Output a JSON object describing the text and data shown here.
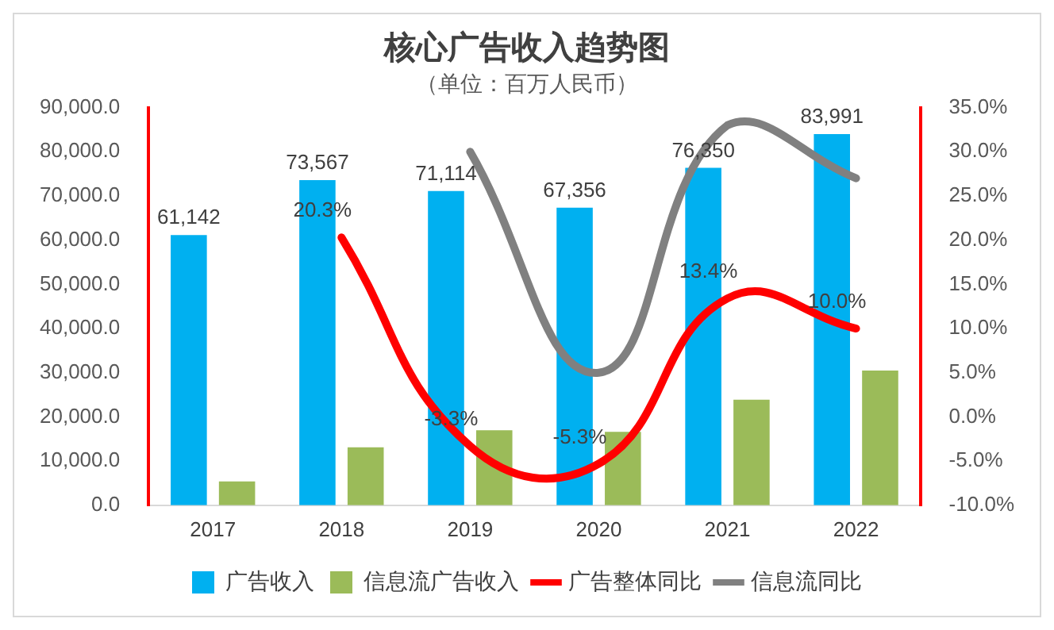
{
  "chart_data": {
    "type": "bar",
    "title": "核心广告收入趋势图",
    "subtitle": "（单位：百万人民币）",
    "categories": [
      "2017",
      "2018",
      "2019",
      "2020",
      "2021",
      "2022"
    ],
    "series": [
      {
        "name": "广告收入",
        "color": "#00b0f0",
        "values": [
          61142,
          73567,
          71114,
          67356,
          76350,
          83991
        ],
        "value_labels": [
          "61,142",
          "73,567",
          "71,114",
          "67,356",
          "76,350",
          "83,991"
        ]
      },
      {
        "name": "信息流广告收入",
        "color": "#9bbb59",
        "values": [
          5400,
          13100,
          17000,
          16600,
          23900,
          30500
        ]
      },
      {
        "name": "广告整体同比",
        "type": "line",
        "axis": "y2",
        "color": "#ff0000",
        "values": [
          null,
          20.3,
          -3.3,
          -5.3,
          13.4,
          10.0
        ],
        "value_labels": [
          null,
          "20.3%",
          "-3.3%",
          "-5.3%",
          "13.4%",
          "10.0%"
        ]
      },
      {
        "name": "信息流同比",
        "type": "line",
        "axis": "y2",
        "color": "#808080",
        "values": [
          null,
          null,
          30.0,
          5.0,
          33.0,
          27.0
        ]
      }
    ],
    "ylim": [
      0,
      90000
    ],
    "yticks": [
      {
        "value": 0,
        "label": "0.0"
      },
      {
        "value": 10000,
        "label": "10,000.0"
      },
      {
        "value": 20000,
        "label": "20,000.0"
      },
      {
        "value": 30000,
        "label": "30,000.0"
      },
      {
        "value": 40000,
        "label": "40,000.0"
      },
      {
        "value": 50000,
        "label": "50,000.0"
      },
      {
        "value": 60000,
        "label": "60,000.0"
      },
      {
        "value": 70000,
        "label": "70,000.0"
      },
      {
        "value": 80000,
        "label": "80,000.0"
      },
      {
        "value": 90000,
        "label": "90,000.0"
      }
    ],
    "y2lim": [
      -10,
      35
    ],
    "y2ticks": [
      {
        "value": -10,
        "label": "-10.0%"
      },
      {
        "value": -5,
        "label": "-5.0%"
      },
      {
        "value": 0,
        "label": "0.0%"
      },
      {
        "value": 5,
        "label": "5.0%"
      },
      {
        "value": 10,
        "label": "10.0%"
      },
      {
        "value": 15,
        "label": "15.0%"
      },
      {
        "value": 20,
        "label": "20.0%"
      },
      {
        "value": 25,
        "label": "25.0%"
      },
      {
        "value": 30,
        "label": "30.0%"
      },
      {
        "value": 35,
        "label": "35.0%"
      }
    ],
    "grid": false,
    "legend": "bottom",
    "marker": "none"
  }
}
